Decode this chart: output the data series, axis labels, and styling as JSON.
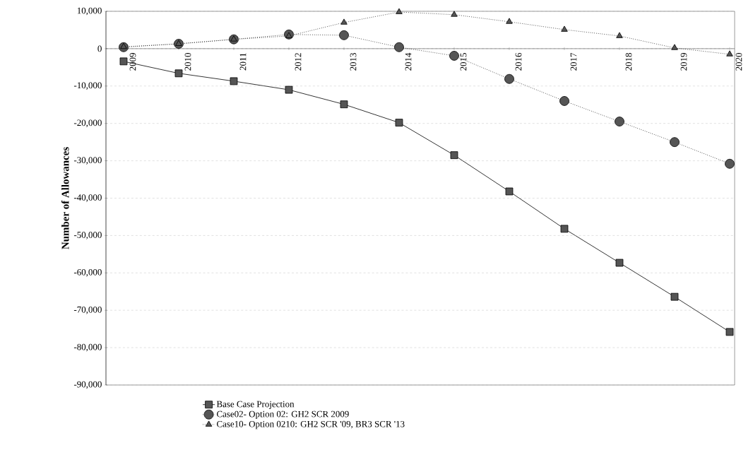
{
  "chart_data": {
    "type": "line",
    "ylabel": "Number of Allowances",
    "categories": [
      "2009",
      "2010",
      "2011",
      "2012",
      "2013",
      "2014",
      "2015",
      "2016",
      "2017",
      "2018",
      "2019",
      "2020"
    ],
    "series": [
      {
        "name": "Base Case Projection",
        "color": "#555555",
        "marker": "square",
        "line_style": "solid",
        "values": [
          -3400,
          -6600,
          -8700,
          -11000,
          -14900,
          -19800,
          -28500,
          -38200,
          -48200,
          -57300,
          -66400,
          -75800
        ]
      },
      {
        "name": "Case02- Option 02:  GH2 SCR 2009",
        "color": "#555555",
        "marker": "circle",
        "line_style": "dotted",
        "values": [
          400,
          1300,
          2500,
          3800,
          3600,
          400,
          -1900,
          -8100,
          -14000,
          -19500,
          -25000,
          -30800
        ]
      },
      {
        "name": "Case10- Option 0210:  GH2 SCR '09, BR3 SCR '13",
        "color": "#555555",
        "marker": "triangle",
        "line_style": "dotted",
        "values": [
          500,
          1300,
          2500,
          3400,
          7000,
          9800,
          9100,
          7200,
          5100,
          3400,
          200,
          -1500
        ]
      }
    ],
    "ylim": [
      -90000,
      10000
    ],
    "yticks": [
      {
        "value": -90000,
        "label": "-90,000"
      },
      {
        "value": -80000,
        "label": "-80,000"
      },
      {
        "value": -70000,
        "label": "-70,000"
      },
      {
        "value": -60000,
        "label": "-60,000"
      },
      {
        "value": -50000,
        "label": "-50,000"
      },
      {
        "value": -40000,
        "label": "-40,000"
      },
      {
        "value": -30000,
        "label": "-30,000"
      },
      {
        "value": -20000,
        "label": "-20,000"
      },
      {
        "value": -10000,
        "label": "-10,000"
      },
      0,
      {
        "value": 10000,
        "label": "10,000"
      }
    ],
    "grid": "y",
    "legend": "bottom"
  }
}
